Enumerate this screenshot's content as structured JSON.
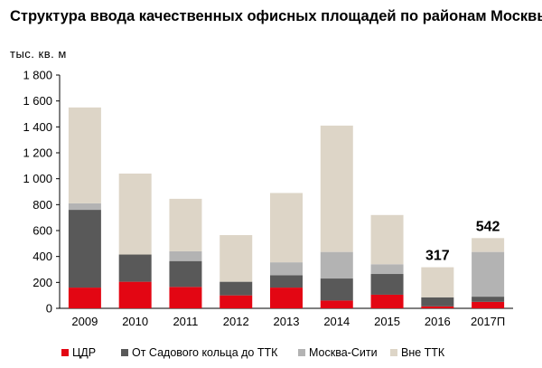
{
  "chart_data": {
    "type": "bar",
    "stacked": true,
    "title": "Структура ввода качественных офисных площадей по районам Москвы",
    "ylabel": "тыс. кв. м",
    "xlabel": "",
    "ylim": [
      0,
      1800
    ],
    "yticks": [
      0,
      200,
      400,
      600,
      800,
      1000,
      1200,
      1400,
      1600,
      1800
    ],
    "ytick_labels": [
      "0",
      "200",
      "400",
      "600",
      "800",
      "1 000",
      "1 200",
      "1 400",
      "1 600",
      "1 800"
    ],
    "categories": [
      "2009",
      "2010",
      "2011",
      "2012",
      "2013",
      "2014",
      "2015",
      "2016",
      "2017П"
    ],
    "series": [
      {
        "name": "ЦДР",
        "color": "#e30613",
        "values": [
          160,
          205,
          165,
          100,
          160,
          60,
          105,
          15,
          50
        ]
      },
      {
        "name": "От Садового кольца до ТТК",
        "color": "#595959",
        "values": [
          600,
          210,
          200,
          105,
          95,
          170,
          160,
          70,
          40
        ]
      },
      {
        "name": "Москва-Сити",
        "color": "#b3b3b3",
        "values": [
          50,
          0,
          75,
          0,
          100,
          205,
          75,
          0,
          345
        ]
      },
      {
        "name": "Вне ТТК",
        "color": "#ddd5c7",
        "values": [
          740,
          625,
          405,
          360,
          535,
          975,
          380,
          232,
          107
        ]
      }
    ],
    "annotations": [
      {
        "category": "2016",
        "text": "317"
      },
      {
        "category": "2017П",
        "text": "542"
      }
    ],
    "legend_position": "bottom",
    "grid": false
  }
}
